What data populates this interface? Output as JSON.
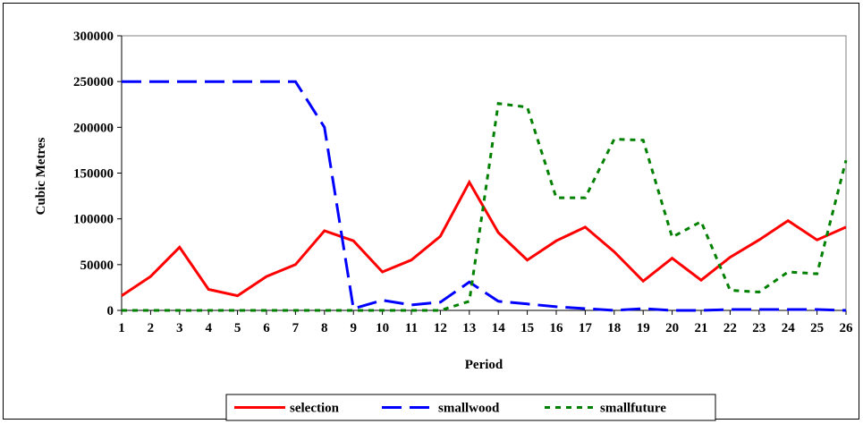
{
  "chart_data": {
    "type": "line",
    "xlabel": "Period",
    "ylabel": "Cubic Metres",
    "ylim": [
      0,
      300000
    ],
    "yticks": [
      0,
      50000,
      100000,
      150000,
      200000,
      250000,
      300000
    ],
    "ytick_labels": [
      "0",
      "50000",
      "100000",
      "150000",
      "200000",
      "250000",
      "300000"
    ],
    "categories": [
      "1",
      "2",
      "3",
      "4",
      "5",
      "6",
      "7",
      "8",
      "9",
      "10",
      "11",
      "12",
      "13",
      "14",
      "15",
      "16",
      "17",
      "18",
      "19",
      "20",
      "21",
      "22",
      "23",
      "24",
      "25",
      "26"
    ],
    "grid": false,
    "legend_position": "bottom",
    "series": [
      {
        "name": "selection",
        "color": "#ff0000",
        "dash": "solid",
        "values": [
          16000,
          37000,
          69000,
          23000,
          16000,
          37000,
          50000,
          87000,
          76000,
          42000,
          55000,
          81000,
          140000,
          85000,
          55000,
          76000,
          91000,
          64000,
          32000,
          57000,
          33000,
          58000,
          77000,
          98000,
          77000,
          91000
        ]
      },
      {
        "name": "smallwood",
        "color": "#0000ff",
        "dash": "long-dash",
        "values": [
          250000,
          250000,
          250000,
          250000,
          250000,
          250000,
          250000,
          200000,
          2000,
          11000,
          6000,
          9000,
          31000,
          10000,
          7000,
          4000,
          2000,
          0,
          2000,
          0,
          0,
          1000,
          1000,
          1000,
          1000,
          0
        ]
      },
      {
        "name": "smallfuture",
        "color": "#008000",
        "dash": "dot",
        "values": [
          0,
          0,
          0,
          0,
          0,
          0,
          0,
          0,
          0,
          0,
          0,
          0,
          10000,
          226000,
          222000,
          123000,
          123000,
          187000,
          186000,
          80000,
          97000,
          22000,
          20000,
          42000,
          40000,
          164000
        ]
      }
    ]
  }
}
